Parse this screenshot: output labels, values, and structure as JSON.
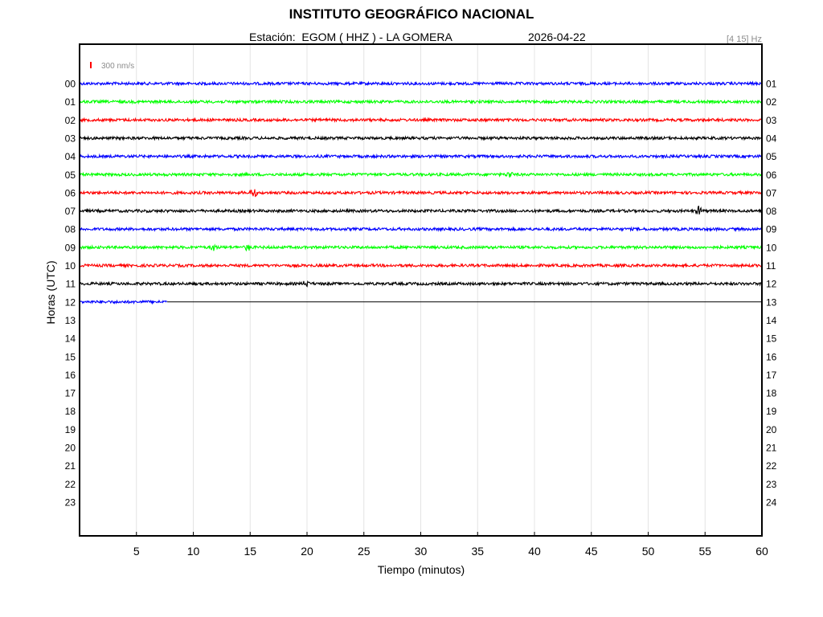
{
  "header": {
    "title": "INSTITUTO GEOGRÁFICO NACIONAL",
    "station_line": "Estación:  EGOM ( HHZ ) - LA GOMERA",
    "date": "2026-04-22",
    "band": "[4 15] Hz"
  },
  "chart_data": {
    "type": "line",
    "xlabel": "Tiempo (minutos)",
    "ylabel": "Horas (UTC)",
    "xlim": [
      0,
      60
    ],
    "x_ticks": [
      "5",
      "10",
      "15",
      "20",
      "25",
      "30",
      "35",
      "40",
      "45",
      "50",
      "55",
      "60"
    ],
    "grid": true,
    "scale_label": "300 nm/s",
    "scale_color": "#ff0000",
    "left_hour_labels": [
      "00",
      "01",
      "02",
      "03",
      "04",
      "05",
      "06",
      "07",
      "08",
      "09",
      "10",
      "11",
      "12",
      "13",
      "14",
      "15",
      "16",
      "17",
      "18",
      "19",
      "20",
      "21",
      "22",
      "23"
    ],
    "right_hour_labels": [
      "01",
      "02",
      "03",
      "04",
      "05",
      "06",
      "07",
      "08",
      "09",
      "10",
      "11",
      "12",
      "13",
      "14",
      "15",
      "16",
      "17",
      "18",
      "19",
      "20",
      "21",
      "22",
      "23",
      "24"
    ],
    "series": [
      {
        "hour": "00",
        "color": "#0000ff",
        "end_minute": 60,
        "events": []
      },
      {
        "hour": "01",
        "color": "#00ff00",
        "end_minute": 60,
        "events": []
      },
      {
        "hour": "02",
        "color": "#ff0000",
        "end_minute": 60,
        "events": []
      },
      {
        "hour": "03",
        "color": "#000000",
        "end_minute": 60,
        "events": []
      },
      {
        "hour": "04",
        "color": "#0000ff",
        "end_minute": 60,
        "events": []
      },
      {
        "hour": "05",
        "color": "#00ff00",
        "end_minute": 60,
        "events": [
          {
            "minute": 37.8,
            "amp": 4
          }
        ]
      },
      {
        "hour": "06",
        "color": "#ff0000",
        "end_minute": 60,
        "events": [
          {
            "minute": 15.3,
            "amp": 7
          }
        ]
      },
      {
        "hour": "07",
        "color": "#000000",
        "end_minute": 60,
        "events": [
          {
            "minute": 54.5,
            "amp": 6
          }
        ]
      },
      {
        "hour": "08",
        "color": "#0000ff",
        "end_minute": 60,
        "events": []
      },
      {
        "hour": "09",
        "color": "#00ff00",
        "end_minute": 60,
        "events": [
          {
            "minute": 11.8,
            "amp": 4
          },
          {
            "minute": 14.8,
            "amp": 4
          }
        ]
      },
      {
        "hour": "10",
        "color": "#ff0000",
        "end_minute": 60,
        "events": []
      },
      {
        "hour": "11",
        "color": "#000000",
        "end_minute": 60,
        "events": [
          {
            "minute": 19.9,
            "amp": 4
          }
        ]
      },
      {
        "hour": "12",
        "color": "#0000ff",
        "end_minute": 7.7,
        "events": []
      }
    ]
  }
}
